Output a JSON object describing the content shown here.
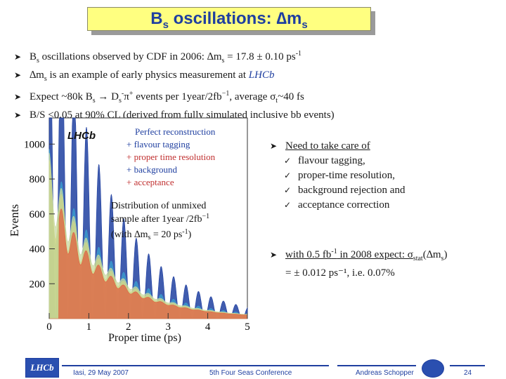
{
  "title": {
    "main": "B",
    "sub": "s",
    "rest": " oscillations: ∆m",
    "sub2": "s"
  },
  "bullets": [
    {
      "parts": [
        "B",
        "s",
        " oscillations observed by CDF in 2006:  ∆m",
        "s",
        " = 17.8 ± 0.10 ps",
        "-1"
      ]
    },
    {
      "pre": "∆m",
      "sub": "s",
      "mid": " is an example of early physics measurement at ",
      "italic": "LHCb"
    },
    {
      "text": "Expect ~80k  B",
      "sub": "s",
      "mid": "  →  D",
      "sub2": "s",
      "sup2": "-",
      "mid2": "π",
      "sup3": "+",
      "rest": " events per 1year/2fb",
      "sup4": "−1",
      "rest2": ",  average  σ",
      "sub3": "t",
      "rest3": "~40  fs"
    },
    {
      "text": "B/S <0.05 at 90% CL (derived from fully simulated inclusive bb events)"
    }
  ],
  "plot": {
    "lhcb_label": "LHCb",
    "legend": [
      {
        "text": "Perfect reconstruction",
        "color": "#1f3fa0"
      },
      {
        "text": "+ flavour tagging",
        "color": "#1f3fa0"
      },
      {
        "text": "+ proper time resolution",
        "color": "#c03030"
      },
      {
        "text": "+ background",
        "color": "#1f3fa0"
      },
      {
        "text": "+ acceptance",
        "color": "#c03030"
      }
    ],
    "annotation": [
      "Distribution of unmixed",
      "sample after 1year /2fb",
      "−1",
      "(with ∆m",
      "s",
      " = 20 ps",
      "-1",
      ")"
    ],
    "ylabel": "Events",
    "xlabel": "Proper time  (ps)",
    "yticks": [
      "200",
      "400",
      "600",
      "800",
      "1000"
    ],
    "xticks": [
      "0",
      "1",
      "2",
      "3",
      "4",
      "5"
    ]
  },
  "chart_data": {
    "type": "line",
    "xlabel": "Proper time  (ps)",
    "ylabel": "Events",
    "xlim": [
      0,
      5
    ],
    "ylim": [
      0,
      1150
    ],
    "series": [
      {
        "name": "Perfect reconstruction",
        "color": "#1f3fa0",
        "amp": 1050,
        "tau": 1.45,
        "contrast": 1.0,
        "damp": 0.0,
        "tstart": 0.0
      },
      {
        "name": "+ flavour tagging",
        "color": "#3aa0d0",
        "amp": 720,
        "tau": 1.45,
        "contrast": 0.35,
        "damp": 0.0,
        "tstart": 0.0
      },
      {
        "name": "+ proper time resolution",
        "color": "#e0d040",
        "amp": 700,
        "tau": 1.45,
        "contrast": 0.3,
        "damp": 0.8,
        "tstart": 0.0
      },
      {
        "name": "+ background",
        "color": "#c8d8a0",
        "amp": 760,
        "tau": 1.45,
        "contrast": 0.25,
        "damp": 0.8,
        "tstart": 0.0
      },
      {
        "name": "+ acceptance",
        "color": "#e06040",
        "amp": 640,
        "tau": 1.45,
        "contrast": 0.25,
        "damp": 0.8,
        "tstart": 0.25
      }
    ],
    "dms": 20
  },
  "right_notes": {
    "head": "Need to take care of",
    "items": [
      "flavour tagging,",
      "proper-time resolution,",
      "background rejection and",
      "acceptance correction"
    ]
  },
  "expect": {
    "line1_pre": "with 0.5 fb",
    "line1_sup": "-1",
    "line1_mid": " in 2008 expect:   σ",
    "line1_sub": "stat",
    "line1_end": "(∆m",
    "line1_sub2": "s",
    "line1_close": ")",
    "line2": "= ± 0.012 ps⁻¹, i.e. 0.07%"
  },
  "footer": {
    "logo": "LHCb",
    "date": "Iasi, 29 May 2007",
    "conference": "5th Four Seas Conference",
    "author": "Andreas Schopper",
    "page": "24"
  }
}
